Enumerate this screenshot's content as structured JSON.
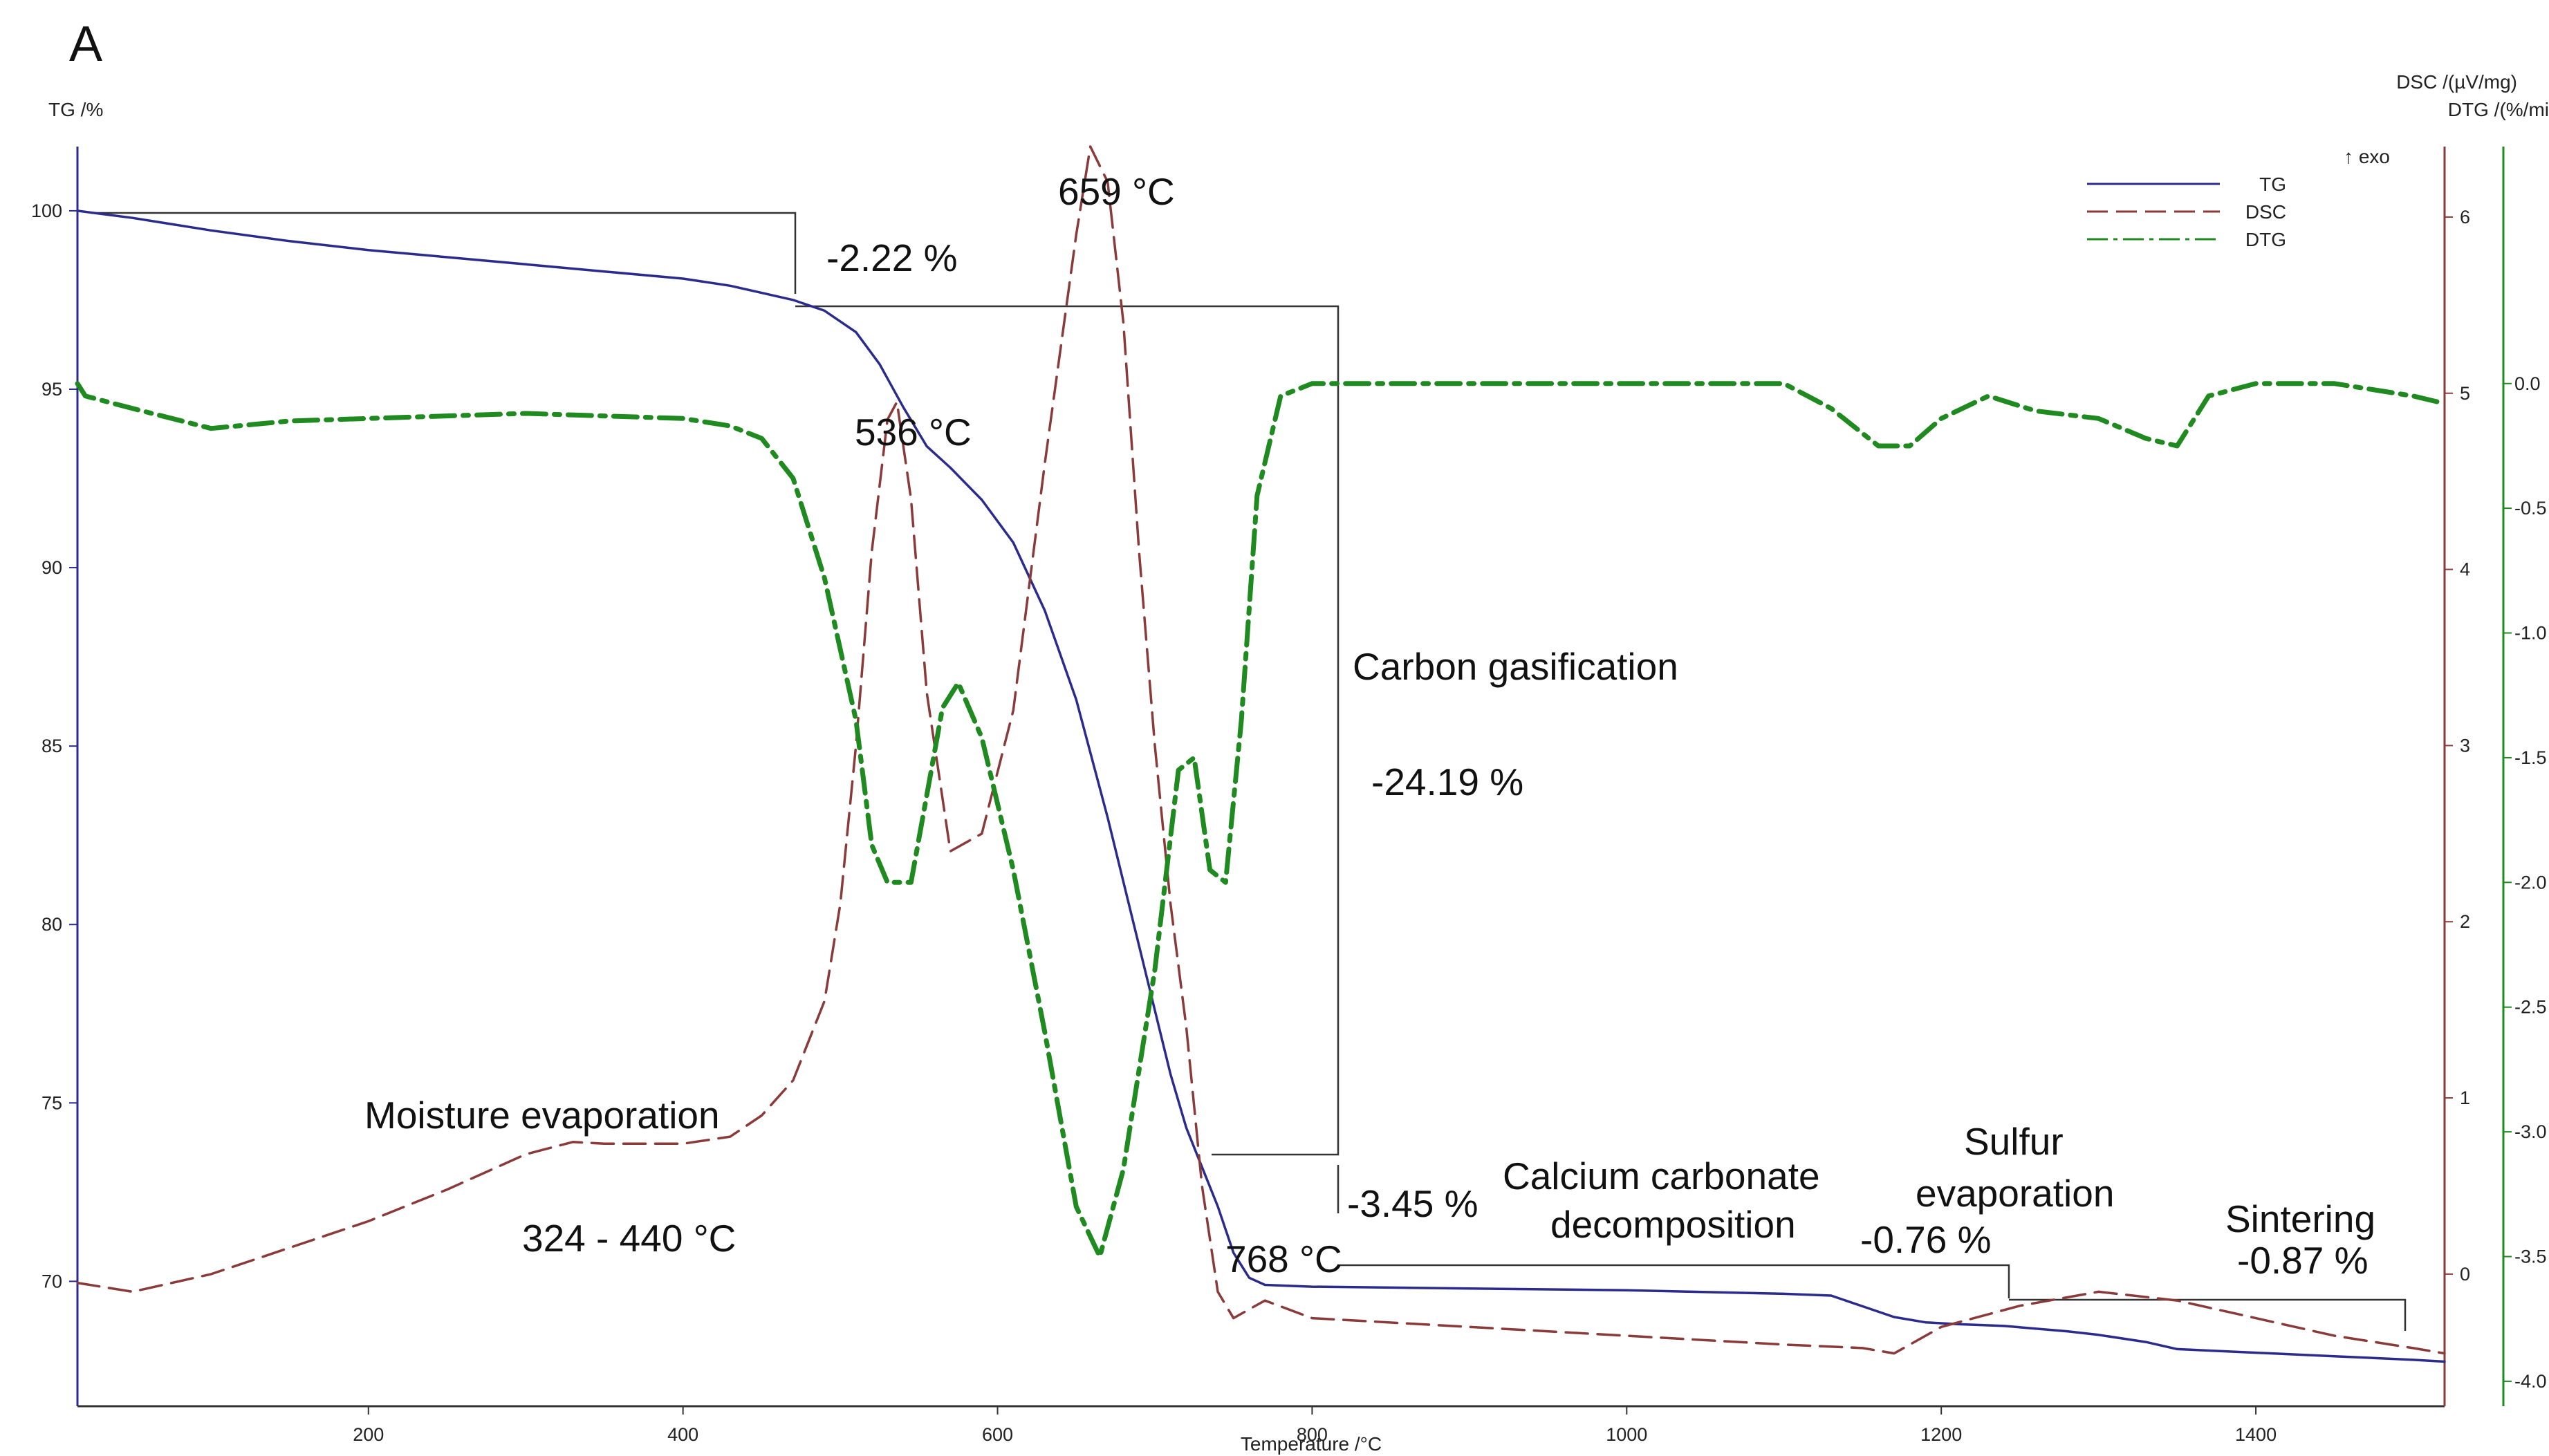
{
  "chart_data": {
    "type": "line",
    "panel_label": "A",
    "xlabel": "Temperature /°C",
    "ylabel_left": "TG /%",
    "ylabel_right_1": "DSC /(µV/mg)",
    "ylabel_right_2": "DTG /(%/mi",
    "exo_label": "↑ exo",
    "xlim": [
      15,
      1520
    ],
    "ylim_tg": [
      66.5,
      101.8
    ],
    "ylim_dsc": [
      -0.75,
      6.4
    ],
    "ylim_dtg": [
      -4.1,
      0.95
    ],
    "x_ticks": [
      "200",
      "400",
      "600",
      "800",
      "1000",
      "1200",
      "1400"
    ],
    "y_ticks_tg": [
      "100",
      "95",
      "90",
      "85",
      "80",
      "75",
      "70"
    ],
    "y_ticks_dsc": [
      "6",
      "5",
      "4",
      "3",
      "2",
      "1",
      "0"
    ],
    "y_ticks_dtg": [
      "0.0",
      "-0.5",
      "-1.0",
      "-1.5",
      "-2.0",
      "-2.5",
      "-3.0",
      "-3.5",
      "-4.0"
    ],
    "legend": [
      "TG",
      "DSC",
      "DTG"
    ],
    "series": [
      {
        "name": "TG",
        "color": "#2b2b8e",
        "x": [
          15,
          50,
          100,
          150,
          200,
          250,
          300,
          350,
          400,
          430,
          450,
          470,
          490,
          510,
          525,
          540,
          555,
          570,
          590,
          610,
          630,
          650,
          670,
          690,
          710,
          720,
          730,
          740,
          750,
          760,
          770,
          800,
          900,
          1000,
          1100,
          1130,
          1150,
          1170,
          1190,
          1210,
          1240,
          1280,
          1300,
          1330,
          1350,
          1400,
          1450,
          1500,
          1520
        ],
        "y": [
          100,
          99.8,
          99.45,
          99.15,
          98.9,
          98.7,
          98.5,
          98.3,
          98.1,
          97.9,
          97.7,
          97.5,
          97.2,
          96.6,
          95.7,
          94.5,
          93.4,
          92.8,
          91.9,
          90.7,
          88.8,
          86.3,
          83.0,
          79.4,
          75.8,
          74.3,
          73.2,
          72.1,
          70.8,
          70.1,
          69.9,
          69.85,
          69.8,
          69.75,
          69.65,
          69.6,
          69.3,
          69.0,
          68.85,
          68.8,
          68.75,
          68.6,
          68.5,
          68.3,
          68.1,
          68.0,
          67.9,
          67.8,
          67.75
        ]
      },
      {
        "name": "DSC",
        "color": "#8b3a3a",
        "x": [
          15,
          50,
          100,
          150,
          200,
          250,
          300,
          330,
          350,
          400,
          430,
          450,
          470,
          490,
          500,
          510,
          520,
          530,
          536,
          545,
          555,
          570,
          590,
          610,
          630,
          650,
          659,
          670,
          680,
          690,
          700,
          710,
          720,
          730,
          740,
          750,
          760,
          770,
          800,
          900,
          1000,
          1100,
          1150,
          1170,
          1200,
          1250,
          1300,
          1350,
          1400,
          1450,
          1500,
          1520
        ],
        "y": [
          -0.05,
          -0.1,
          0.0,
          0.15,
          0.3,
          0.48,
          0.68,
          0.75,
          0.74,
          0.74,
          0.78,
          0.9,
          1.1,
          1.55,
          2.1,
          3.0,
          4.1,
          4.85,
          4.95,
          4.4,
          3.3,
          2.4,
          2.5,
          3.2,
          4.6,
          5.9,
          6.4,
          6.2,
          5.4,
          4.1,
          3.0,
          2.1,
          1.4,
          0.5,
          -0.1,
          -0.25,
          -0.2,
          -0.15,
          -0.25,
          -0.3,
          -0.35,
          -0.4,
          -0.42,
          -0.45,
          -0.3,
          -0.18,
          -0.1,
          -0.15,
          -0.25,
          -0.35,
          -0.42,
          -0.45
        ]
      },
      {
        "name": "DTG",
        "color": "#1f8a1f",
        "x": [
          15,
          20,
          50,
          100,
          150,
          200,
          300,
          400,
          430,
          450,
          470,
          490,
          510,
          520,
          530,
          545,
          555,
          565,
          575,
          590,
          610,
          630,
          650,
          665,
          680,
          700,
          715,
          725,
          735,
          745,
          755,
          765,
          780,
          800,
          900,
          1000,
          1100,
          1130,
          1160,
          1180,
          1200,
          1230,
          1260,
          1300,
          1330,
          1350,
          1370,
          1400,
          1450,
          1500,
          1520
        ],
        "y": [
          0.0,
          -0.05,
          -0.1,
          -0.18,
          -0.15,
          -0.14,
          -0.12,
          -0.14,
          -0.17,
          -0.22,
          -0.38,
          -0.78,
          -1.35,
          -1.85,
          -2.0,
          -2.0,
          -1.65,
          -1.3,
          -1.2,
          -1.42,
          -1.95,
          -2.6,
          -3.3,
          -3.5,
          -3.15,
          -2.35,
          -1.55,
          -1.5,
          -1.95,
          -2.0,
          -1.35,
          -0.45,
          -0.05,
          0.0,
          0.0,
          0.0,
          0.0,
          -0.1,
          -0.25,
          -0.25,
          -0.14,
          -0.05,
          -0.11,
          -0.14,
          -0.22,
          -0.25,
          -0.05,
          0.0,
          0.0,
          -0.05,
          -0.08
        ]
      }
    ],
    "annotations": [
      {
        "text": "659 °C"
      },
      {
        "text": "-2.22 %"
      },
      {
        "text": "536 °C"
      },
      {
        "text": "Carbon gasification"
      },
      {
        "text": "-24.19 %"
      },
      {
        "text": "Moisture evaporation"
      },
      {
        "text": "324 - 440 °C"
      },
      {
        "text": "-3.45 %"
      },
      {
        "text": "768 °C"
      },
      {
        "text": "Calcium carbonate"
      },
      {
        "text": "decomposition"
      },
      {
        "text": "-0.76 %"
      },
      {
        "text": "Sulfur"
      },
      {
        "text": "evaporation"
      },
      {
        "text": "Sintering"
      },
      {
        "text": "-0.87 %"
      }
    ]
  }
}
